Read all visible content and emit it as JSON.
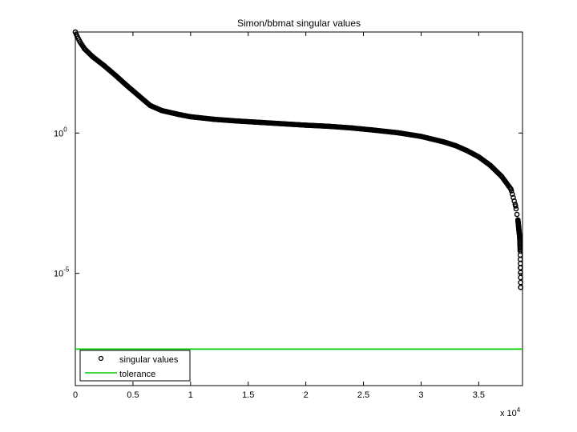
{
  "chart_data": {
    "type": "scatter",
    "title": "Simon/bbmat singular values",
    "xlabel": "",
    "ylabel": "",
    "x_scale_note": "x 10",
    "x_scale_exponent": "4",
    "xlim": [
      0,
      38800
    ],
    "ylim_log10": [
      -9,
      3.6
    ],
    "yscale": "log",
    "grid": false,
    "legend_position": "bottom-left",
    "x_ticks": [
      {
        "value": 0,
        "label": "0"
      },
      {
        "value": 5000,
        "label": "0.5"
      },
      {
        "value": 10000,
        "label": "1"
      },
      {
        "value": 15000,
        "label": "1.5"
      },
      {
        "value": 20000,
        "label": "2"
      },
      {
        "value": 25000,
        "label": "2.5"
      },
      {
        "value": 30000,
        "label": "3"
      },
      {
        "value": 35000,
        "label": "3.5"
      }
    ],
    "y_ticks": [
      {
        "log10": 0,
        "base": "10",
        "exp": "0"
      },
      {
        "log10": -5,
        "base": "10",
        "exp": "-5"
      }
    ],
    "series": [
      {
        "name": "singular values",
        "marker": "open-circle",
        "color": "#000000",
        "points": [
          [
            0,
            3.6
          ],
          [
            150,
            3.45
          ],
          [
            400,
            3.25
          ],
          [
            800,
            3.0
          ],
          [
            1500,
            2.72
          ],
          [
            2500,
            2.4
          ],
          [
            3500,
            2.05
          ],
          [
            4500,
            1.68
          ],
          [
            5500,
            1.33
          ],
          [
            6500,
            0.98
          ],
          [
            7500,
            0.8
          ],
          [
            9000,
            0.66
          ],
          [
            10000,
            0.58
          ],
          [
            12000,
            0.49
          ],
          [
            14000,
            0.43
          ],
          [
            16000,
            0.38
          ],
          [
            18000,
            0.33
          ],
          [
            20000,
            0.28
          ],
          [
            22000,
            0.24
          ],
          [
            24000,
            0.18
          ],
          [
            26000,
            0.1
          ],
          [
            28000,
            0.01
          ],
          [
            30000,
            -0.12
          ],
          [
            32000,
            -0.32
          ],
          [
            33000,
            -0.45
          ],
          [
            34000,
            -0.63
          ],
          [
            35000,
            -0.85
          ],
          [
            36000,
            -1.15
          ],
          [
            37000,
            -1.55
          ],
          [
            37800,
            -2.0
          ],
          [
            38200,
            -2.6
          ],
          [
            38400,
            -3.1
          ],
          [
            38550,
            -3.7
          ],
          [
            38600,
            -4.2
          ],
          [
            38620,
            -4.8
          ],
          [
            38640,
            -5.5
          ]
        ]
      },
      {
        "name": "tolerance",
        "line": true,
        "color": "#00cc00",
        "value_log10": -7.7
      }
    ]
  }
}
